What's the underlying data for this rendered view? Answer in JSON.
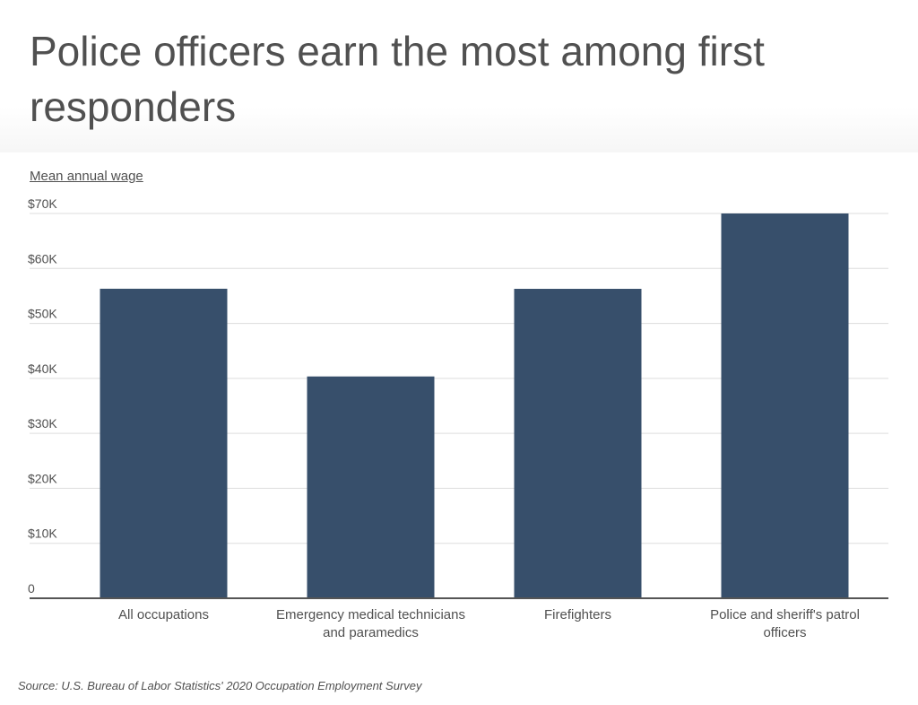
{
  "title": "Police officers earn the most among first responders",
  "source": "Source:  U.S. Bureau of Labor Statistics' 2020 Occupation Employment Survey",
  "colors": {
    "bar": "#374f6b",
    "grid": "#dddddd",
    "axis": "#555555",
    "text": "#505050"
  },
  "chart_data": {
    "type": "bar",
    "ylabel": "Mean annual wage",
    "xlabel": "",
    "categories": [
      [
        "All occupations"
      ],
      [
        "Emergency medical technicians",
        "and paramedics"
      ],
      [
        "Firefighters"
      ],
      [
        "Police and sheriff's patrol",
        "officers"
      ]
    ],
    "values": [
      56310,
      40350,
      56290,
      70000
    ],
    "ylim": [
      0,
      70000
    ],
    "yticks": [
      0,
      10000,
      20000,
      30000,
      40000,
      50000,
      60000,
      70000
    ],
    "ytick_labels": [
      "0",
      "$10K",
      "$20K",
      "$30K",
      "$40K",
      "$50K",
      "$60K",
      "$70K"
    ],
    "grid": true
  }
}
